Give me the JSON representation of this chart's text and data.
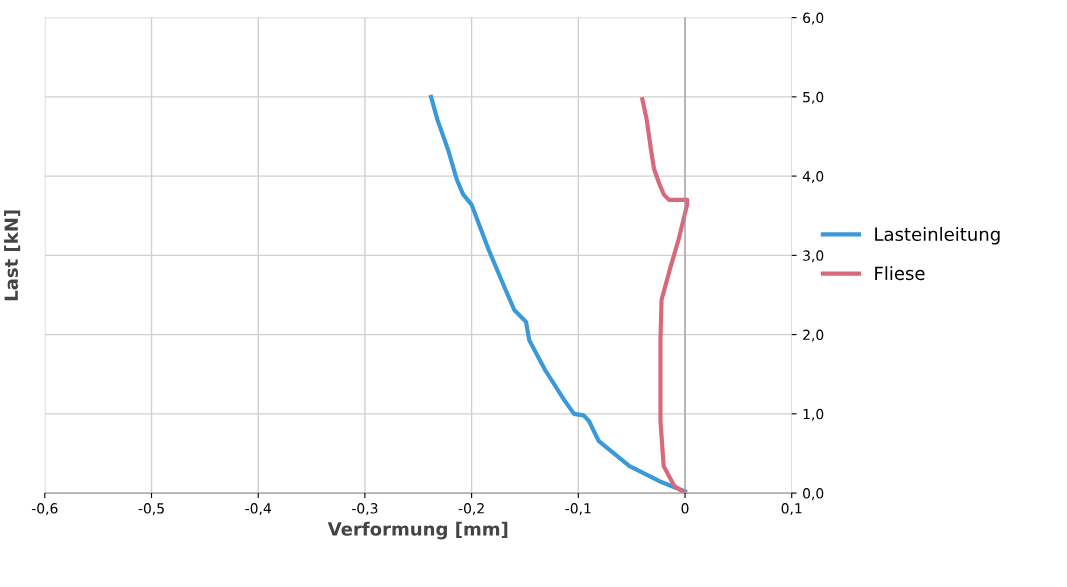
{
  "chart_data": {
    "type": "line",
    "xlabel": "Verformung [mm]",
    "ylabel": "Last [kN]",
    "xlim": [
      -0.6,
      0.1
    ],
    "ylim": [
      0,
      6
    ],
    "xticks": [
      {
        "value": -0.6,
        "label": "-0,6"
      },
      {
        "value": -0.5,
        "label": "-0,5"
      },
      {
        "value": -0.4,
        "label": "-0,4"
      },
      {
        "value": -0.3,
        "label": "-0,3"
      },
      {
        "value": -0.2,
        "label": "-0,2"
      },
      {
        "value": -0.1,
        "label": "-0,1"
      },
      {
        "value": 0,
        "label": "0"
      },
      {
        "value": 0.1,
        "label": "0,1"
      }
    ],
    "yticks": [
      {
        "value": 0,
        "label": "0,0"
      },
      {
        "value": 1,
        "label": "1,0"
      },
      {
        "value": 2,
        "label": "2,0"
      },
      {
        "value": 3,
        "label": "3,0"
      },
      {
        "value": 4,
        "label": "4,0"
      },
      {
        "value": 5,
        "label": "5,0"
      },
      {
        "value": 6,
        "label": "6,0"
      }
    ],
    "grid": true,
    "legend": "right",
    "marker": "none",
    "line_style": "solid",
    "series": [
      {
        "name": "Lasteinleitung",
        "color": "#3a9ad9",
        "x": [
          0,
          -0.024,
          -0.052,
          -0.081,
          -0.09,
          -0.095,
          -0.104,
          -0.113,
          -0.131,
          -0.146,
          -0.149,
          -0.16,
          -0.168,
          -0.184,
          -0.193,
          -0.2,
          -0.208,
          -0.214,
          -0.222,
          -0.232,
          -0.238
        ],
        "values": [
          0.02,
          0.15,
          0.34,
          0.66,
          0.91,
          0.98,
          1.0,
          1.17,
          1.55,
          1.93,
          2.16,
          2.31,
          2.56,
          3.07,
          3.39,
          3.64,
          3.77,
          3.96,
          4.33,
          4.71,
          5.0
        ]
      },
      {
        "name": "Fliese",
        "color": "#d9687a",
        "x": [
          0,
          -0.01,
          -0.02,
          -0.023,
          -0.023,
          -0.022,
          -0.013,
          -0.006,
          0.002,
          0.002,
          -0.015,
          -0.02,
          -0.024,
          -0.029,
          -0.032,
          -0.036,
          -0.04
        ],
        "values": [
          0,
          0.09,
          0.34,
          0.91,
          1.93,
          2.44,
          2.88,
          3.2,
          3.64,
          3.7,
          3.7,
          3.77,
          3.9,
          4.09,
          4.34,
          4.72,
          4.97
        ]
      }
    ]
  }
}
